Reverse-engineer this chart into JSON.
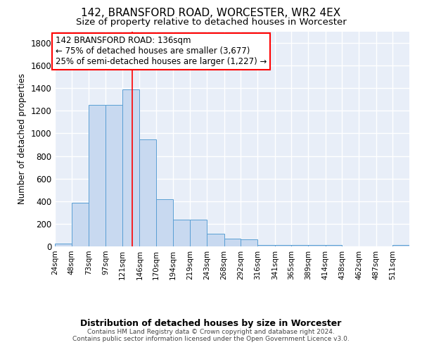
{
  "title1": "142, BRANSFORD ROAD, WORCESTER, WR2 4EX",
  "title2": "Size of property relative to detached houses in Worcester",
  "xlabel": "Distribution of detached houses by size in Worcester",
  "ylabel": "Number of detached properties",
  "annotation_line1": "142 BRANSFORD ROAD: 136sqm",
  "annotation_line2": "← 75% of detached houses are smaller (3,677)",
  "annotation_line3": "25% of semi-detached houses are larger (1,227) →",
  "footer1": "Contains HM Land Registry data © Crown copyright and database right 2024.",
  "footer2": "Contains public sector information licensed under the Open Government Licence v3.0.",
  "bar_color": "#c8d9f0",
  "bar_edge_color": "#5a9fd4",
  "red_line_x": 136,
  "categories": [
    "24sqm",
    "48sqm",
    "73sqm",
    "97sqm",
    "121sqm",
    "146sqm",
    "170sqm",
    "194sqm",
    "219sqm",
    "243sqm",
    "268sqm",
    "292sqm",
    "316sqm",
    "341sqm",
    "365sqm",
    "389sqm",
    "414sqm",
    "438sqm",
    "462sqm",
    "487sqm",
    "511sqm"
  ],
  "bin_edges": [
    24,
    48,
    73,
    97,
    121,
    146,
    170,
    194,
    219,
    243,
    268,
    292,
    316,
    341,
    365,
    389,
    414,
    438,
    462,
    487,
    511
  ],
  "bar_heights": [
    25,
    385,
    1255,
    1255,
    1390,
    950,
    420,
    235,
    235,
    115,
    70,
    65,
    10,
    10,
    10,
    10,
    10,
    0,
    0,
    0,
    15
  ],
  "ylim": [
    0,
    1900
  ],
  "yticks": [
    0,
    200,
    400,
    600,
    800,
    1000,
    1200,
    1400,
    1600,
    1800
  ],
  "background_color": "#ffffff",
  "plot_bg_color": "#e8eef8",
  "grid_color": "#ffffff"
}
